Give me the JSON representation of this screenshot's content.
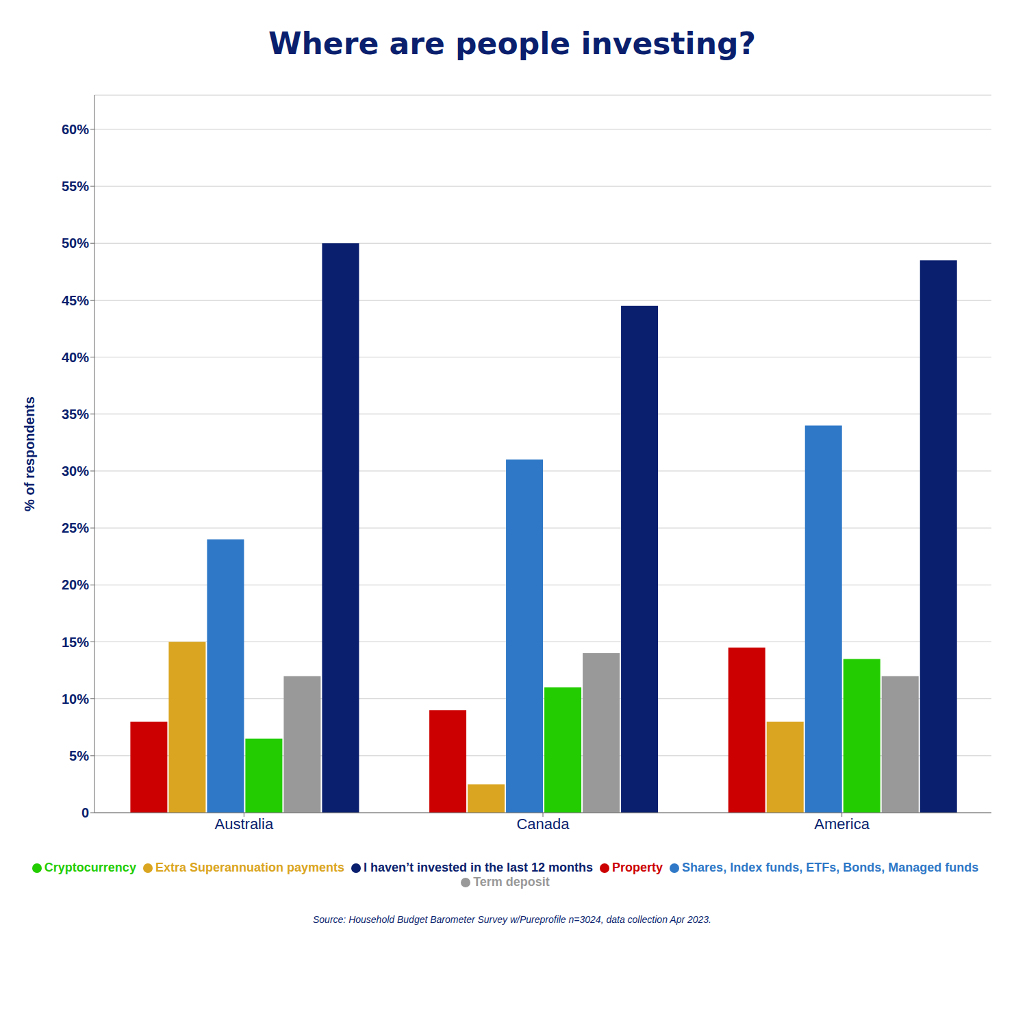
{
  "chart_data": {
    "type": "bar",
    "title": "Where are people investing?",
    "ylabel": "% of respondents",
    "categories": [
      "Australia",
      "Canada",
      "America"
    ],
    "series": [
      {
        "name": "Property",
        "color": "#CC0000",
        "values": [
          8,
          9,
          14.5
        ]
      },
      {
        "name": "Extra Superannuation payments",
        "color": "#DAA520",
        "values": [
          15,
          2.5,
          8
        ]
      },
      {
        "name": "Shares, Index funds, ETFs, Bonds, Managed funds",
        "color": "#2E78C7",
        "values": [
          24,
          31,
          34
        ]
      },
      {
        "name": "Cryptocurrency",
        "color": "#22CC00",
        "values": [
          6.5,
          11,
          13.5
        ]
      },
      {
        "name": "Term deposit",
        "color": "#999999",
        "values": [
          12,
          14,
          12
        ]
      },
      {
        "name": "I haven’t invested in the last 12 months",
        "color": "#0A1F6E",
        "values": [
          50,
          44.5,
          48.5
        ]
      }
    ],
    "ylim": [
      0,
      63
    ],
    "yticks": [
      0,
      {
        "value": 5,
        "label": "5%"
      },
      {
        "value": 10,
        "label": "10%"
      },
      {
        "value": 15,
        "label": "15%"
      },
      {
        "value": 20,
        "label": "20%"
      },
      {
        "value": 25,
        "label": "25%"
      },
      {
        "value": 30,
        "label": "30%"
      },
      {
        "value": 35,
        "label": "35%"
      },
      {
        "value": 40,
        "label": "40%"
      },
      {
        "value": 45,
        "label": "45%"
      },
      {
        "value": 50,
        "label": "50%"
      },
      {
        "value": 55,
        "label": "55%"
      },
      {
        "value": 60,
        "label": "60%"
      }
    ],
    "grid": true,
    "legend": "bottom",
    "annotations": [
      "Source: Household Budget Barometer Survey w/Pureprofile n=3024, data collection Apr 2023."
    ]
  }
}
